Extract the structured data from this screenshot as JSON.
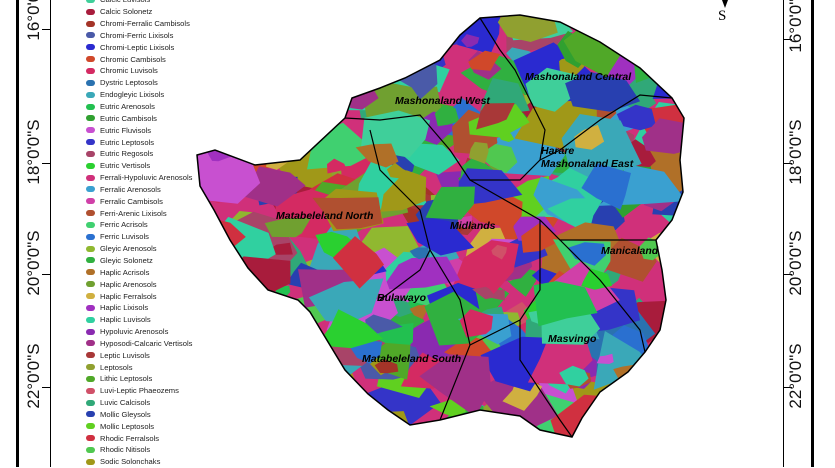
{
  "latitude_labels": [
    "16°0'0\"S",
    "18°0'0\"S",
    "20°0'0\"S",
    "22°0'0\"S"
  ],
  "north_arrow": {
    "letter": "S"
  },
  "legend": [
    {
      "label": "Calcic Luvisols",
      "color": "#3fcf9a"
    },
    {
      "label": "Calcic Solonetz",
      "color": "#a81c3c"
    },
    {
      "label": "Chromi-Ferralic Cambisols",
      "color": "#a43428"
    },
    {
      "label": "Chromi-Ferric Lixisols",
      "color": "#4a5aa8"
    },
    {
      "label": "Chromi-Leptic Lixisols",
      "color": "#2a2ad0"
    },
    {
      "label": "Chromic Cambisols",
      "color": "#d0482a"
    },
    {
      "label": "Chromic Luvisols",
      "color": "#d42a62"
    },
    {
      "label": "Dystric Leptosols",
      "color": "#2a72b0"
    },
    {
      "label": "Endogleyic Lixisols",
      "color": "#3aa8b8"
    },
    {
      "label": "Eutric Arenosols",
      "color": "#22c050"
    },
    {
      "label": "Eutric Cambisols",
      "color": "#30a030"
    },
    {
      "label": "Eutric Fluvisols",
      "color": "#c850d0"
    },
    {
      "label": "Eutric Leptosols",
      "color": "#3434c8"
    },
    {
      "label": "Eutric Regosols",
      "color": "#a84468"
    },
    {
      "label": "Eutric Vertisols",
      "color": "#2ad030"
    },
    {
      "label": "Ferrali-Hypoluvic Arenosols",
      "color": "#d0307a"
    },
    {
      "label": "Ferralic Arenosols",
      "color": "#3aa0d0"
    },
    {
      "label": "Ferralic Cambisols",
      "color": "#d040a8"
    },
    {
      "label": "Ferri-Arenic Lixisols",
      "color": "#b05030"
    },
    {
      "label": "Ferric Acrisols",
      "color": "#40d070"
    },
    {
      "label": "Ferric Luvisols",
      "color": "#2a70d0"
    },
    {
      "label": "Gleyic Arenosols",
      "color": "#90b830"
    },
    {
      "label": "Gleyic Solonetz",
      "color": "#30b040"
    },
    {
      "label": "Haplic Acrisols",
      "color": "#b07028"
    },
    {
      "label": "Haplic Arenosols",
      "color": "#70a030"
    },
    {
      "label": "Haplic Ferralsols",
      "color": "#d0b040"
    },
    {
      "label": "Haplic Lixisols",
      "color": "#a030c0"
    },
    {
      "label": "Haplic Luvisols",
      "color": "#30d0a0"
    },
    {
      "label": "Hypoluvic Arenosols",
      "color": "#8a2ab0"
    },
    {
      "label": "Hyposodi-Calcaric Vertisols",
      "color": "#a03088"
    },
    {
      "label": "Leptic Luvisols",
      "color": "#a83838"
    },
    {
      "label": "Leptosols",
      "color": "#90a030"
    },
    {
      "label": "Lithic Leptosols",
      "color": "#50a828"
    },
    {
      "label": "Luvi-Leptic Phaeozems",
      "color": "#d05068"
    },
    {
      "label": "Luvic Calcisols",
      "color": "#30a878"
    },
    {
      "label": "Mollic Gleysols",
      "color": "#2840b0"
    },
    {
      "label": "Mollic Leptosols",
      "color": "#60d020"
    },
    {
      "label": "Rhodic Ferralsols",
      "color": "#d03040"
    },
    {
      "label": "Rhodic Nitisols",
      "color": "#50c850"
    },
    {
      "label": "Sodic Solonchaks",
      "color": "#a09818"
    }
  ],
  "provinces": [
    {
      "name": "Mashonaland Central"
    },
    {
      "name": "Mashonaland West"
    },
    {
      "name": "Harare"
    },
    {
      "name": "Mashonaland East"
    },
    {
      "name": "Matabeleland North"
    },
    {
      "name": "Midlands"
    },
    {
      "name": "Manicaland"
    },
    {
      "name": "Bulawayo"
    },
    {
      "name": "Masvingo"
    },
    {
      "name": "Matabeleland South"
    }
  ]
}
